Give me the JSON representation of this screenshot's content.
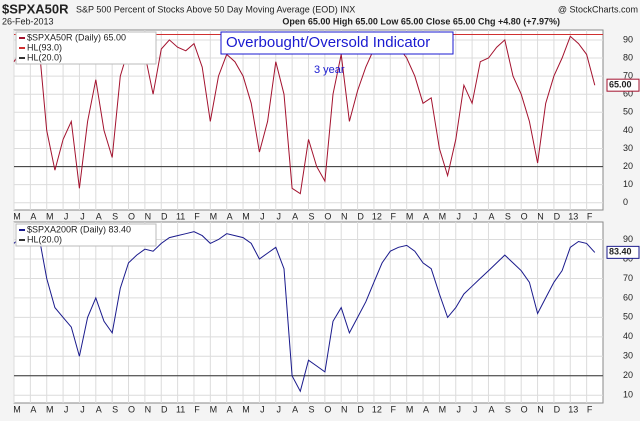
{
  "header": {
    "symbol": "$SPXA50R",
    "description": "S&P 500 Percent of Stocks Above 50 Day Moving Average (EOD) INX",
    "source": "@ StockCharts.com",
    "date": "26-Feb-2013",
    "quote": "Open 65.00  High 65.00  Low 65.00  Close 65.00  Chg +4.80 (+7.97%)"
  },
  "chart_data": [
    {
      "type": "line",
      "annotations": [
        "Overbought/Oversold Indicator",
        "3 year"
      ],
      "value_tag": "65.00",
      "x": [
        0,
        0.5,
        1,
        1.5,
        2,
        2.5,
        3,
        3.5,
        4,
        4.5,
        5,
        5.5,
        6,
        6.5,
        7,
        7.5,
        8,
        8.5,
        9,
        9.5,
        10,
        10.5,
        11,
        11.5,
        12,
        12.5,
        13,
        13.5,
        14,
        14.5,
        15,
        15.5,
        16,
        16.5,
        17,
        17.5,
        18,
        18.5,
        19,
        19.5,
        20,
        20.5,
        21,
        21.5,
        22,
        22.5,
        23,
        23.5,
        24,
        24.5,
        25,
        25.5,
        26,
        26.5,
        27,
        27.5,
        28,
        28.5,
        29,
        29.5,
        30,
        30.5,
        31,
        31.5,
        32,
        32.5,
        33,
        33.5,
        34,
        34.5,
        35,
        35.5
      ],
      "series": [
        {
          "name": "$SPXA50R (Daily) 65.00",
          "color": "#a3122e",
          "values": [
            78,
            85,
            88,
            90,
            40,
            18,
            35,
            45,
            8,
            45,
            68,
            40,
            25,
            70,
            85,
            88,
            82,
            60,
            85,
            90,
            86,
            84,
            88,
            75,
            45,
            70,
            82,
            78,
            70,
            55,
            28,
            45,
            78,
            60,
            8,
            5,
            35,
            20,
            12,
            60,
            82,
            45,
            62,
            75,
            85,
            90,
            88,
            86,
            80,
            70,
            55,
            58,
            30,
            15,
            35,
            65,
            55,
            78,
            80,
            86,
            90,
            70,
            60,
            45,
            22,
            55,
            70,
            80,
            92,
            88,
            82,
            65
          ]
        }
      ],
      "hlines": [
        {
          "name": "HL(93.0)",
          "value": 93,
          "color": "#d03030"
        },
        {
          "name": "HL(20.0)",
          "value": 20,
          "color": "#333333"
        }
      ],
      "xlim": [
        0,
        36
      ],
      "ylim": [
        -4,
        95.5
      ],
      "yticks": [
        0,
        10,
        20,
        30,
        40,
        50,
        60,
        70,
        80,
        90
      ],
      "grid": true,
      "xticks": [
        {
          "value": 0,
          "label": "M"
        },
        {
          "value": 1,
          "label": "A"
        },
        {
          "value": 2,
          "label": "M"
        },
        {
          "value": 3,
          "label": "J"
        },
        {
          "value": 4,
          "label": "J"
        },
        {
          "value": 5,
          "label": "A"
        },
        {
          "value": 6,
          "label": "S"
        },
        {
          "value": 7,
          "label": "O"
        },
        {
          "value": 8,
          "label": "N"
        },
        {
          "value": 9,
          "label": "D"
        },
        {
          "value": 10,
          "label": "11"
        },
        {
          "value": 11,
          "label": "F"
        },
        {
          "value": 12,
          "label": "M"
        },
        {
          "value": 13,
          "label": "A"
        },
        {
          "value": 14,
          "label": "M"
        },
        {
          "value": 15,
          "label": "J"
        },
        {
          "value": 16,
          "label": "J"
        },
        {
          "value": 17,
          "label": "A"
        },
        {
          "value": 18,
          "label": "S"
        },
        {
          "value": 19,
          "label": "O"
        },
        {
          "value": 20,
          "label": "N"
        },
        {
          "value": 21,
          "label": "D"
        },
        {
          "value": 22,
          "label": "12"
        },
        {
          "value": 23,
          "label": "F"
        },
        {
          "value": 24,
          "label": "M"
        },
        {
          "value": 25,
          "label": "A"
        },
        {
          "value": 26,
          "label": "M"
        },
        {
          "value": 27,
          "label": "J"
        },
        {
          "value": 28,
          "label": "J"
        },
        {
          "value": 29,
          "label": "A"
        },
        {
          "value": 30,
          "label": "S"
        },
        {
          "value": 31,
          "label": "O"
        },
        {
          "value": 32,
          "label": "N"
        },
        {
          "value": 33,
          "label": "D"
        },
        {
          "value": 34,
          "label": "13"
        },
        {
          "value": 35,
          "label": "F"
        }
      ]
    },
    {
      "type": "line",
      "value_tag": "83.40",
      "x": [
        0,
        0.5,
        1,
        1.5,
        2,
        2.5,
        3,
        3.5,
        4,
        4.5,
        5,
        5.5,
        6,
        6.5,
        7,
        7.5,
        8,
        8.5,
        9,
        9.5,
        10,
        10.5,
        11,
        11.5,
        12,
        12.5,
        13,
        13.5,
        14,
        14.5,
        15,
        15.5,
        16,
        16.5,
        17,
        17.5,
        18,
        18.5,
        19,
        19.5,
        20,
        20.5,
        21,
        21.5,
        22,
        22.5,
        23,
        23.5,
        24,
        24.5,
        25,
        25.5,
        26,
        26.5,
        27,
        27.5,
        28,
        28.5,
        29,
        29.5,
        30,
        30.5,
        31,
        31.5,
        32,
        32.5,
        33,
        33.5,
        34,
        34.5,
        35,
        35.5
      ],
      "series": [
        {
          "name": "$SPXA200R (Daily) 83.40",
          "color": "#1a1a8c",
          "values": [
            88,
            92,
            94,
            93,
            70,
            55,
            50,
            45,
            30,
            50,
            60,
            48,
            42,
            65,
            78,
            82,
            85,
            84,
            88,
            91,
            92,
            93,
            94,
            92,
            88,
            90,
            93,
            92,
            91,
            88,
            80,
            83,
            86,
            75,
            20,
            12,
            28,
            25,
            22,
            48,
            55,
            42,
            50,
            58,
            68,
            78,
            84,
            86,
            87,
            84,
            78,
            75,
            62,
            50,
            55,
            62,
            66,
            70,
            74,
            78,
            82,
            78,
            74,
            68,
            52,
            60,
            68,
            74,
            86,
            89,
            88,
            83.4
          ]
        }
      ],
      "hlines": [
        {
          "name": "HL(20.0)",
          "value": 20,
          "color": "#333333"
        }
      ],
      "xlim": [
        0,
        36
      ],
      "ylim": [
        6,
        99
      ],
      "yticks": [
        10,
        20,
        30,
        40,
        50,
        60,
        70,
        80,
        90
      ],
      "grid": true,
      "xticks": [
        {
          "value": 0,
          "label": "M"
        },
        {
          "value": 1,
          "label": "A"
        },
        {
          "value": 2,
          "label": "M"
        },
        {
          "value": 3,
          "label": "J"
        },
        {
          "value": 4,
          "label": "J"
        },
        {
          "value": 5,
          "label": "A"
        },
        {
          "value": 6,
          "label": "S"
        },
        {
          "value": 7,
          "label": "O"
        },
        {
          "value": 8,
          "label": "N"
        },
        {
          "value": 9,
          "label": "D"
        },
        {
          "value": 10,
          "label": "11"
        },
        {
          "value": 11,
          "label": "F"
        },
        {
          "value": 12,
          "label": "M"
        },
        {
          "value": 13,
          "label": "A"
        },
        {
          "value": 14,
          "label": "M"
        },
        {
          "value": 15,
          "label": "J"
        },
        {
          "value": 16,
          "label": "J"
        },
        {
          "value": 17,
          "label": "A"
        },
        {
          "value": 18,
          "label": "S"
        },
        {
          "value": 19,
          "label": "O"
        },
        {
          "value": 20,
          "label": "N"
        },
        {
          "value": 21,
          "label": "D"
        },
        {
          "value": 22,
          "label": "12"
        },
        {
          "value": 23,
          "label": "F"
        },
        {
          "value": 24,
          "label": "M"
        },
        {
          "value": 25,
          "label": "A"
        },
        {
          "value": 26,
          "label": "M"
        },
        {
          "value": 27,
          "label": "J"
        },
        {
          "value": 28,
          "label": "J"
        },
        {
          "value": 29,
          "label": "A"
        },
        {
          "value": 30,
          "label": "S"
        },
        {
          "value": 31,
          "label": "O"
        },
        {
          "value": 32,
          "label": "N"
        },
        {
          "value": 33,
          "label": "D"
        },
        {
          "value": 34,
          "label": "13"
        },
        {
          "value": 35,
          "label": "F"
        }
      ]
    }
  ]
}
